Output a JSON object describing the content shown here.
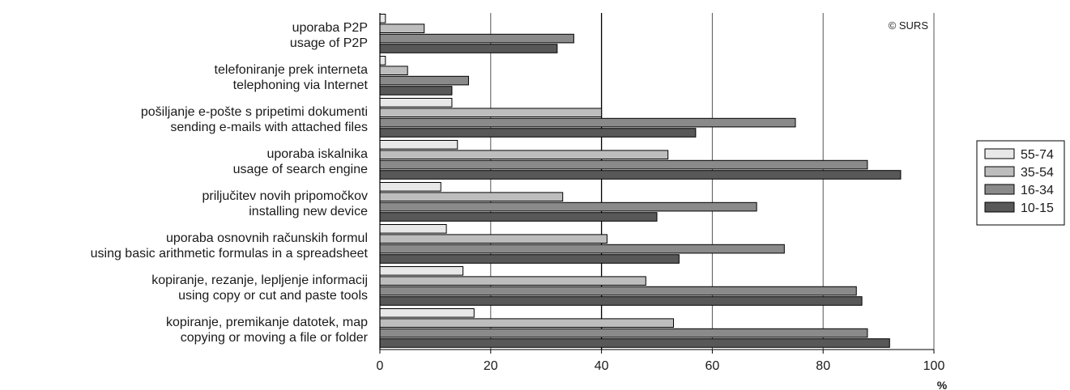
{
  "chart_data": {
    "type": "bar",
    "orientation": "horizontal",
    "copyright": "© SURS",
    "xlabel": "%",
    "xlim": [
      0,
      100
    ],
    "xticks": [
      0,
      20,
      40,
      60,
      80,
      100
    ],
    "grid": true,
    "legend_position": "right",
    "categories": [
      [
        "uporaba P2P",
        "usage of P2P"
      ],
      [
        "telefoniranje prek interneta",
        "telephoning via Internet"
      ],
      [
        "pošiljanje e-pošte s pripetimi dokumenti",
        "sending e-mails with attached files"
      ],
      [
        "uporaba iskalnika",
        "usage of search engine"
      ],
      [
        "priljučitev novih pripomočkov",
        "installing new device"
      ],
      [
        "uporaba osnovnih računskih formul",
        "using basic arithmetic formulas in a spreadsheet"
      ],
      [
        "kopiranje, rezanje, lepljenje informacij",
        "using copy or cut and paste tools"
      ],
      [
        "kopiranje, premikanje datotek, map",
        "copying or moving a file or folder"
      ]
    ],
    "series": [
      {
        "name": "55-74",
        "color": "#e8e8e8",
        "values": [
          1,
          1,
          13,
          14,
          11,
          12,
          15,
          17
        ]
      },
      {
        "name": "35-54",
        "color": "#bdbdbd",
        "values": [
          8,
          5,
          40,
          52,
          33,
          41,
          48,
          53
        ]
      },
      {
        "name": "16-34",
        "color": "#8a8a8a",
        "values": [
          35,
          16,
          75,
          88,
          68,
          73,
          86,
          88
        ]
      },
      {
        "name": "10-15",
        "color": "#585858",
        "values": [
          32,
          13,
          57,
          94,
          50,
          54,
          87,
          92
        ]
      }
    ]
  }
}
